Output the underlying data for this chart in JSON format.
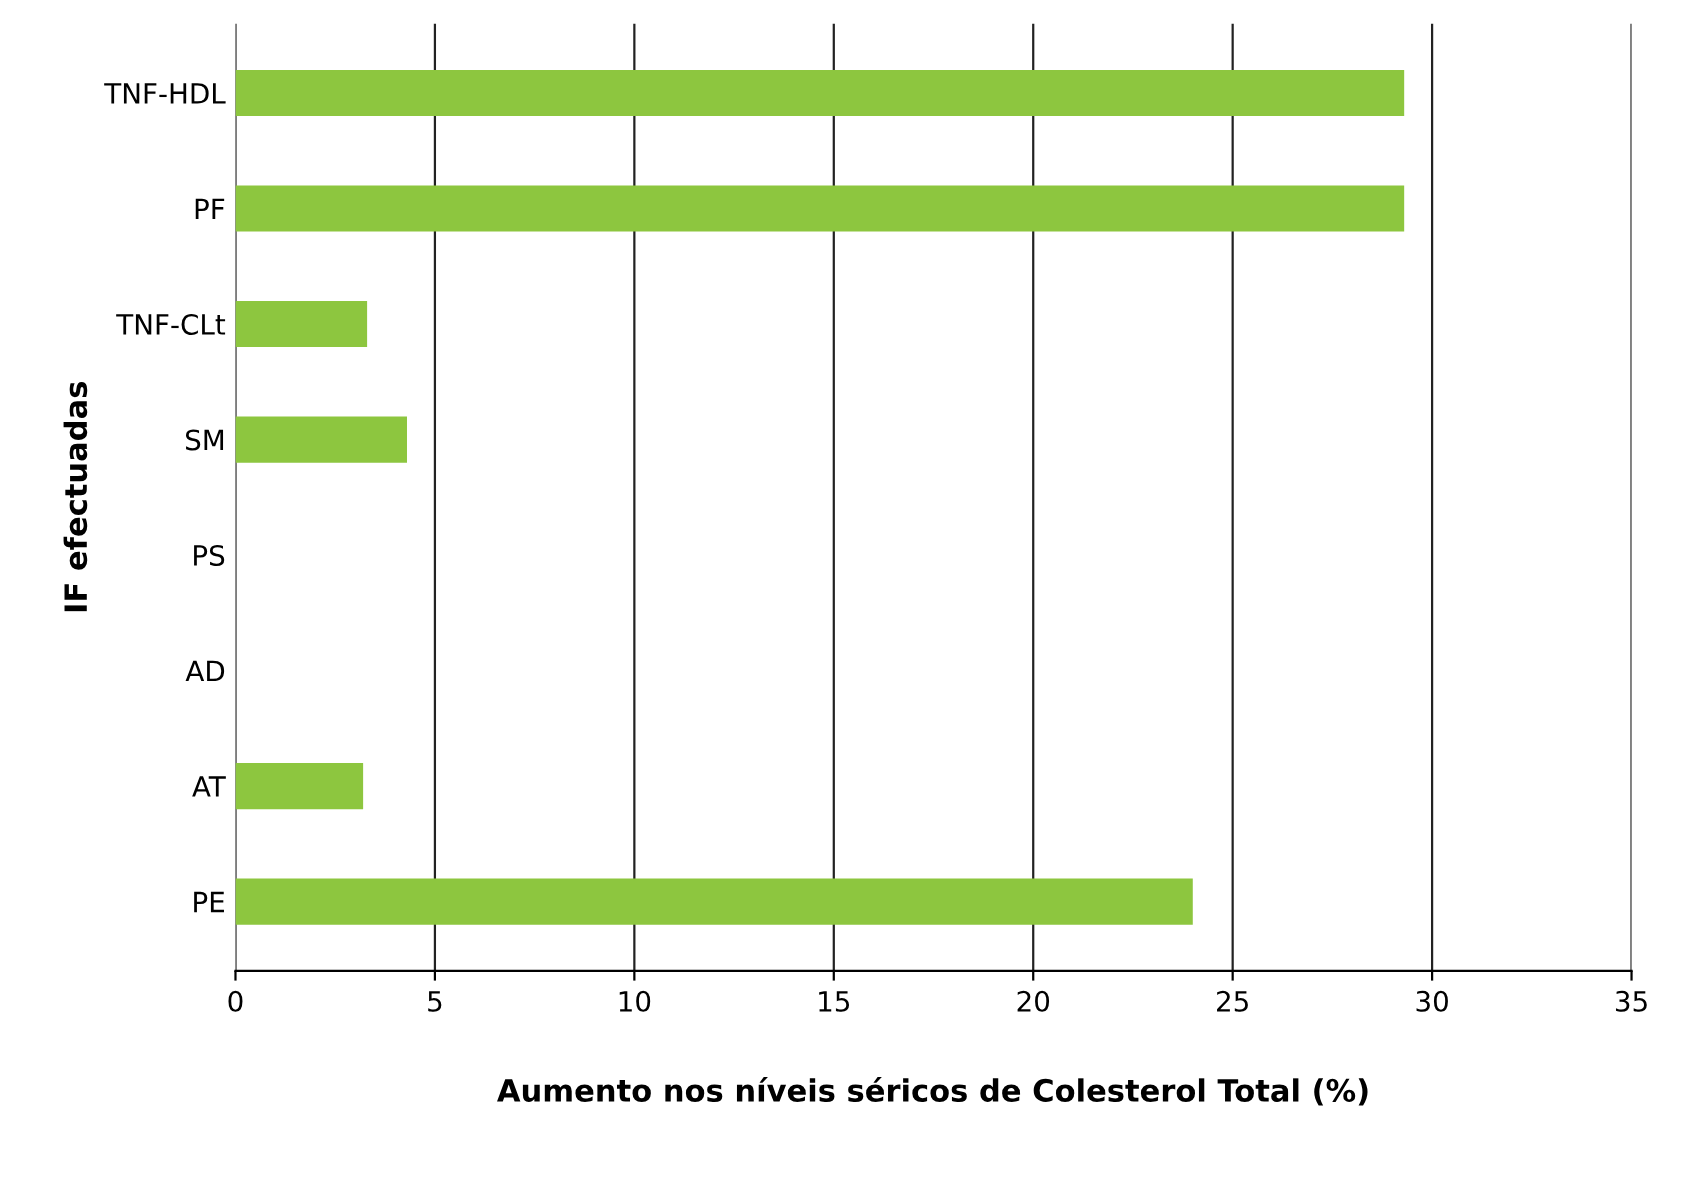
{
  "chart_data": {
    "type": "bar",
    "orientation": "horizontal",
    "xlabel": "Aumento nos níveis séricos de Colesterol Total (%)",
    "ylabel": "IF efectuadas",
    "categories": [
      "TNF-HDL",
      "PF",
      "TNF-CLt",
      "SM",
      "PS",
      "AD",
      "AT",
      "PE"
    ],
    "values": [
      29.3,
      29.3,
      3.3,
      4.3,
      0,
      0,
      3.2,
      24.0
    ],
    "color": "#8dc63f",
    "xlim": [
      0,
      35
    ],
    "xticks": [
      0,
      5,
      10,
      15,
      20,
      25,
      30,
      35
    ],
    "grid": "x"
  }
}
